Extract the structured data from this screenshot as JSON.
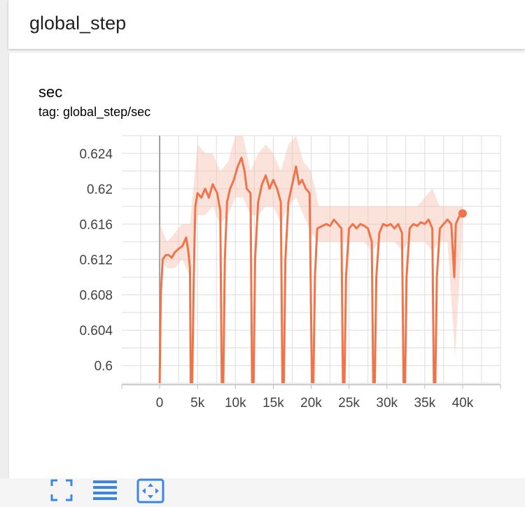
{
  "header": {
    "title": "global_step"
  },
  "card": {
    "title": "sec",
    "tag": "tag: global_step/sec"
  },
  "colors": {
    "series": "#f0744a",
    "series_raw": "#f7c2b0",
    "grid": "#dddddd",
    "axis": "#bdbdbd",
    "icon": "#3a86e6"
  },
  "toolbar": {
    "expand_icon": "fullscreen-icon",
    "log_icon": "list-lines-icon",
    "fit_icon": "fit-domain-icon"
  },
  "chart_data": {
    "type": "line",
    "title": "",
    "xlabel": "",
    "ylabel": "",
    "xlim": [
      -5000,
      45000
    ],
    "ylim": [
      0.598,
      0.626
    ],
    "xticks": [
      0,
      5000,
      10000,
      15000,
      20000,
      25000,
      30000,
      35000,
      40000
    ],
    "xtick_labels": [
      "0",
      "5k",
      "10k",
      "15k",
      "20k",
      "25k",
      "30k",
      "35k",
      "40k"
    ],
    "yticks": [
      0.6,
      0.604,
      0.608,
      0.612,
      0.616,
      0.62,
      0.624
    ],
    "ytick_labels": [
      "0.6",
      "0.604",
      "0.608",
      "0.612",
      "0.616",
      "0.62",
      "0.624"
    ],
    "grid": true,
    "series": [
      {
        "name": "",
        "smoothed": [
          [
            0,
            0.598
          ],
          [
            150,
            0.608
          ],
          [
            400,
            0.612
          ],
          [
            800,
            0.6125
          ],
          [
            1200,
            0.6125
          ],
          [
            1600,
            0.6122
          ],
          [
            2000,
            0.6128
          ],
          [
            2500,
            0.6132
          ],
          [
            3000,
            0.6135
          ],
          [
            3500,
            0.6145
          ],
          [
            3800,
            0.6128
          ],
          [
            4000,
            0.611
          ],
          [
            4100,
            0.598
          ],
          [
            4300,
            0.598
          ],
          [
            4500,
            0.61
          ],
          [
            4700,
            0.618
          ],
          [
            5000,
            0.6195
          ],
          [
            5500,
            0.619
          ],
          [
            6000,
            0.62
          ],
          [
            6500,
            0.619
          ],
          [
            7000,
            0.6205
          ],
          [
            7600,
            0.6195
          ],
          [
            8000,
            0.6175
          ],
          [
            8200,
            0.598
          ],
          [
            8400,
            0.598
          ],
          [
            8600,
            0.612
          ],
          [
            8900,
            0.6185
          ],
          [
            9300,
            0.62
          ],
          [
            9800,
            0.621
          ],
          [
            10300,
            0.6225
          ],
          [
            10800,
            0.6235
          ],
          [
            11200,
            0.622
          ],
          [
            11500,
            0.62
          ],
          [
            12000,
            0.6195
          ],
          [
            12200,
            0.598
          ],
          [
            12400,
            0.598
          ],
          [
            12600,
            0.612
          ],
          [
            13000,
            0.6185
          ],
          [
            13500,
            0.6205
          ],
          [
            14000,
            0.6215
          ],
          [
            14500,
            0.62
          ],
          [
            15000,
            0.621
          ],
          [
            15500,
            0.62
          ],
          [
            16000,
            0.6185
          ],
          [
            16200,
            0.598
          ],
          [
            16400,
            0.598
          ],
          [
            16600,
            0.612
          ],
          [
            17000,
            0.6185
          ],
          [
            17500,
            0.6205
          ],
          [
            18000,
            0.6225
          ],
          [
            18400,
            0.6205
          ],
          [
            18800,
            0.621
          ],
          [
            19300,
            0.62
          ],
          [
            19800,
            0.6195
          ],
          [
            20100,
            0.598
          ],
          [
            20300,
            0.598
          ],
          [
            20500,
            0.61
          ],
          [
            20800,
            0.6155
          ],
          [
            21500,
            0.6158
          ],
          [
            22000,
            0.616
          ],
          [
            22500,
            0.6158
          ],
          [
            23000,
            0.6165
          ],
          [
            23500,
            0.616
          ],
          [
            24000,
            0.6155
          ],
          [
            24200,
            0.598
          ],
          [
            24400,
            0.598
          ],
          [
            24600,
            0.61
          ],
          [
            25000,
            0.6155
          ],
          [
            25500,
            0.616
          ],
          [
            26000,
            0.6155
          ],
          [
            26500,
            0.616
          ],
          [
            27000,
            0.6158
          ],
          [
            27500,
            0.6155
          ],
          [
            28000,
            0.614
          ],
          [
            28200,
            0.598
          ],
          [
            28400,
            0.598
          ],
          [
            28600,
            0.61
          ],
          [
            29000,
            0.615
          ],
          [
            29500,
            0.616
          ],
          [
            30000,
            0.6158
          ],
          [
            30500,
            0.616
          ],
          [
            31000,
            0.6155
          ],
          [
            31500,
            0.616
          ],
          [
            32000,
            0.615
          ],
          [
            32200,
            0.598
          ],
          [
            32400,
            0.598
          ],
          [
            32600,
            0.61
          ],
          [
            33000,
            0.6155
          ],
          [
            33500,
            0.616
          ],
          [
            34000,
            0.6158
          ],
          [
            34500,
            0.6162
          ],
          [
            35000,
            0.616
          ],
          [
            35500,
            0.6165
          ],
          [
            36000,
            0.6155
          ],
          [
            36200,
            0.598
          ],
          [
            36400,
            0.598
          ],
          [
            36600,
            0.61
          ],
          [
            37000,
            0.6155
          ],
          [
            37500,
            0.616
          ],
          [
            38000,
            0.6165
          ],
          [
            38500,
            0.616
          ],
          [
            38900,
            0.61
          ],
          [
            39100,
            0.616
          ],
          [
            39500,
            0.6168
          ],
          [
            40000,
            0.6172
          ]
        ],
        "raw_band": [
          [
            0,
            0.612,
            0.616
          ],
          [
            1000,
            0.611,
            0.614
          ],
          [
            2000,
            0.611,
            0.615
          ],
          [
            3000,
            0.612,
            0.616
          ],
          [
            4000,
            0.61,
            0.616
          ],
          [
            5000,
            0.617,
            0.625
          ],
          [
            6000,
            0.617,
            0.624
          ],
          [
            7000,
            0.618,
            0.624
          ],
          [
            8000,
            0.616,
            0.622
          ],
          [
            9000,
            0.617,
            0.623
          ],
          [
            10000,
            0.619,
            0.626
          ],
          [
            11000,
            0.619,
            0.626
          ],
          [
            12000,
            0.617,
            0.622
          ],
          [
            13000,
            0.617,
            0.624
          ],
          [
            14000,
            0.618,
            0.625
          ],
          [
            15000,
            0.618,
            0.624
          ],
          [
            16000,
            0.616,
            0.622
          ],
          [
            17000,
            0.618,
            0.625
          ],
          [
            18000,
            0.619,
            0.626
          ],
          [
            19000,
            0.617,
            0.623
          ],
          [
            20000,
            0.615,
            0.622
          ],
          [
            21000,
            0.614,
            0.618
          ],
          [
            22000,
            0.614,
            0.618
          ],
          [
            23000,
            0.614,
            0.618
          ],
          [
            24000,
            0.614,
            0.618
          ],
          [
            25000,
            0.614,
            0.618
          ],
          [
            26000,
            0.614,
            0.618
          ],
          [
            27000,
            0.614,
            0.618
          ],
          [
            28000,
            0.613,
            0.618
          ],
          [
            29000,
            0.614,
            0.618
          ],
          [
            30000,
            0.614,
            0.618
          ],
          [
            31000,
            0.614,
            0.618
          ],
          [
            32000,
            0.613,
            0.618
          ],
          [
            33000,
            0.614,
            0.618
          ],
          [
            34000,
            0.614,
            0.618
          ],
          [
            35000,
            0.614,
            0.619
          ],
          [
            36000,
            0.613,
            0.62
          ],
          [
            37000,
            0.614,
            0.618
          ],
          [
            38000,
            0.614,
            0.618
          ],
          [
            39000,
            0.601,
            0.618
          ],
          [
            40000,
            0.616,
            0.618
          ]
        ],
        "last_point": [
          40000,
          0.6172
        ]
      }
    ]
  }
}
